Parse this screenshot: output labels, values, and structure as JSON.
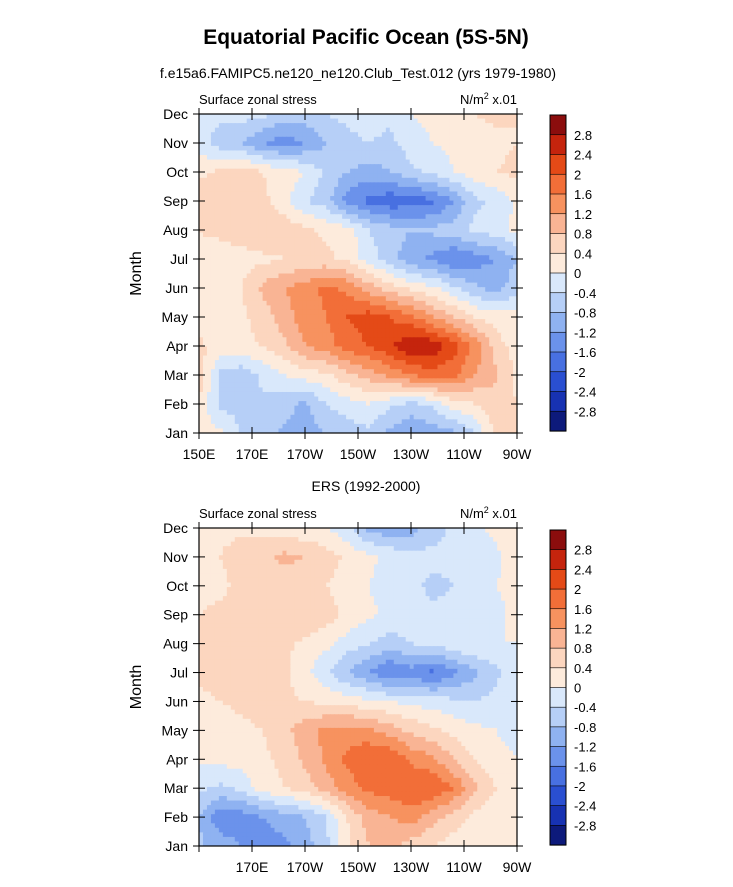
{
  "page": {
    "title": "Equatorial Pacific Ocean (5S-5N)",
    "subtitle": "f.e15a6.FAMIPC5.ne120_ne120.Club_Test.012 (yrs 1979-1980)"
  },
  "colorbar": {
    "levels": [
      "2.8",
      "2.4",
      "2",
      "1.6",
      "1.2",
      "0.8",
      "0.4",
      "0",
      "-0.4",
      "-0.8",
      "-1.2",
      "-1.6",
      "-2",
      "-2.4",
      "-2.8"
    ],
    "colors": [
      "#8b0d0d",
      "#c5240d",
      "#e44a17",
      "#f26e38",
      "#f7925f",
      "#f9b494",
      "#fcd6bf",
      "#fdebdc",
      "#d9e8fb",
      "#b6cff7",
      "#8fb2f1",
      "#6b92eb",
      "#4870e1",
      "#2a4fd1",
      "#1732b2",
      "#0d1a7b"
    ]
  },
  "chart_data": [
    {
      "type": "contour",
      "panel_title": "",
      "left_label": "Surface zonal stress",
      "right_label_base": "N/m",
      "right_label_sup": "2",
      "right_label_tail": " x.01",
      "ylabel": "Month",
      "months": [
        "Jan",
        "Feb",
        "Mar",
        "Apr",
        "May",
        "Jun",
        "Jul",
        "Aug",
        "Sep",
        "Oct",
        "Nov",
        "Dec"
      ],
      "x_ticks": [
        "150E",
        "170E",
        "170W",
        "150W",
        "130W",
        "110W",
        "90W"
      ],
      "lon_range": [
        150,
        270
      ],
      "values": [
        [
          0.1,
          0.1,
          -0.4,
          -0.6,
          -0.9,
          -1.0,
          -0.8,
          -0.6,
          -0.5,
          -0.9,
          -1.2,
          -1.0,
          -0.9,
          -0.4,
          0.5,
          0.8
        ],
        [
          0.3,
          -0.5,
          -0.6,
          -0.5,
          -0.6,
          -0.9,
          -0.4,
          -0.2,
          0.0,
          -0.3,
          -0.5,
          -0.3,
          0.2,
          0.4,
          0.6,
          0.4
        ],
        [
          0.7,
          -0.5,
          -0.7,
          -0.3,
          0.0,
          0.2,
          0.3,
          0.7,
          1.0,
          1.3,
          1.6,
          1.8,
          1.7,
          1.2,
          0.9,
          0.3
        ],
        [
          0.5,
          0.2,
          0.3,
          0.4,
          0.7,
          1.2,
          1.4,
          1.8,
          2.0,
          2.3,
          2.8,
          2.7,
          2.2,
          1.5,
          0.6,
          0.2
        ],
        [
          0.2,
          0.1,
          0.3,
          0.6,
          1.0,
          1.4,
          1.6,
          2.0,
          2.2,
          2.0,
          1.7,
          1.2,
          0.8,
          0.4,
          0.2,
          0.1
        ],
        [
          0.1,
          0.2,
          0.4,
          0.9,
          1.2,
          1.4,
          1.7,
          1.5,
          1.0,
          0.6,
          0.3,
          0.1,
          -0.3,
          -0.7,
          -1.0,
          -0.5
        ],
        [
          0.3,
          0.2,
          0.2,
          0.3,
          0.4,
          0.5,
          0.5,
          0.3,
          -0.2,
          -0.6,
          -1.1,
          -1.3,
          -1.6,
          -1.4,
          -1.2,
          -0.8
        ],
        [
          0.4,
          0.5,
          0.7,
          0.8,
          0.6,
          0.5,
          0.3,
          0.2,
          -0.4,
          -0.6,
          -0.8,
          -0.7,
          -0.6,
          -0.3,
          -0.2,
          0.1
        ],
        [
          0.7,
          0.7,
          0.5,
          0.5,
          0.2,
          -0.4,
          -0.6,
          -1.4,
          -1.7,
          -1.9,
          -1.8,
          -1.7,
          -1.2,
          -0.5,
          -0.3,
          0.1
        ],
        [
          0.3,
          0.5,
          0.6,
          0.4,
          0.2,
          0.0,
          -0.5,
          -0.8,
          -1.0,
          -0.8,
          -0.5,
          -0.3,
          0.0,
          0.2,
          0.4,
          0.5
        ],
        [
          -0.2,
          -0.6,
          -0.8,
          -1.2,
          -1.4,
          -1.2,
          -0.8,
          -0.5,
          -0.4,
          -0.5,
          -0.2,
          0.0,
          0.1,
          0.2,
          0.3,
          0.4
        ],
        [
          -0.3,
          -0.3,
          -0.2,
          -0.3,
          -0.6,
          -0.6,
          -0.4,
          -0.3,
          -0.2,
          -0.3,
          0.0,
          0.1,
          0.3,
          0.4,
          0.5,
          0.4
        ]
      ]
    },
    {
      "type": "contour",
      "panel_title": "ERS (1992-2000)",
      "left_label": "Surface zonal stress",
      "right_label_base": "N/m",
      "right_label_sup": "2",
      "right_label_tail": " x.01",
      "ylabel": "Month",
      "months": [
        "Jan",
        "Feb",
        "Mar",
        "Apr",
        "May",
        "Jun",
        "Jul",
        "Aug",
        "Sep",
        "Oct",
        "Nov",
        "Dec"
      ],
      "x_ticks": [
        "",
        "170E",
        "170W",
        "150W",
        "130W",
        "110W",
        "90W"
      ],
      "lon_range": [
        150,
        270
      ],
      "values": [
        [
          -0.7,
          -1.0,
          -1.2,
          -1.4,
          -1.3,
          -1.0,
          -0.5,
          0.3,
          0.8,
          0.9,
          0.6,
          0.4,
          0.2,
          0.1,
          0.1,
          0.0
        ],
        [
          -0.8,
          -1.5,
          -1.4,
          -1.2,
          -1.0,
          -0.8,
          -0.4,
          0.4,
          1.0,
          1.2,
          1.4,
          1.0,
          0.6,
          0.3,
          0.1,
          0.0
        ],
        [
          -0.3,
          -0.5,
          -0.3,
          0.2,
          0.4,
          0.6,
          1.0,
          1.4,
          1.7,
          1.8,
          2.0,
          2.0,
          1.6,
          0.9,
          0.4,
          0.1
        ],
        [
          0.1,
          0.1,
          0.2,
          0.3,
          0.5,
          0.9,
          1.3,
          1.7,
          2.0,
          2.0,
          1.5,
          1.3,
          0.8,
          0.4,
          0.1,
          0.0
        ],
        [
          0.2,
          0.2,
          0.3,
          0.4,
          0.7,
          1.0,
          1.3,
          1.4,
          1.3,
          1.0,
          0.7,
          0.5,
          0.3,
          0.1,
          0.0,
          -0.1
        ],
        [
          0.3,
          0.4,
          0.5,
          0.6,
          0.5,
          0.4,
          0.3,
          0.2,
          0.1,
          0.0,
          -0.1,
          -0.2,
          -0.3,
          -0.4,
          -0.3,
          0.0
        ],
        [
          0.5,
          0.6,
          0.7,
          0.7,
          0.5,
          0.1,
          -0.3,
          -0.8,
          -1.2,
          -1.6,
          -1.4,
          -1.7,
          -1.3,
          -0.9,
          -0.5,
          -0.1
        ],
        [
          0.4,
          0.5,
          0.5,
          0.5,
          0.5,
          0.3,
          0.1,
          -0.2,
          -0.4,
          -0.6,
          -0.4,
          -0.3,
          -0.1,
          0.0,
          0.0,
          0.0
        ],
        [
          0.4,
          0.5,
          0.6,
          0.7,
          0.6,
          0.8,
          0.6,
          0.3,
          0.1,
          -0.1,
          -0.2,
          -0.3,
          -0.3,
          -0.2,
          -0.1,
          0.1
        ],
        [
          0.3,
          0.3,
          0.5,
          0.6,
          0.5,
          0.6,
          0.4,
          0.2,
          0.0,
          -0.2,
          -0.3,
          -0.5,
          -0.4,
          -0.3,
          0.0,
          0.1
        ],
        [
          0.4,
          0.4,
          0.6,
          0.7,
          0.9,
          0.8,
          0.6,
          0.3,
          0.1,
          -0.1,
          -0.2,
          -0.3,
          -0.3,
          -0.2,
          -0.1,
          0.2
        ],
        [
          0.3,
          0.3,
          0.3,
          0.3,
          0.2,
          0.1,
          0.0,
          -0.3,
          -0.9,
          -1.1,
          -1.0,
          -0.6,
          -0.3,
          -0.1,
          0.1,
          0.3
        ]
      ]
    }
  ]
}
